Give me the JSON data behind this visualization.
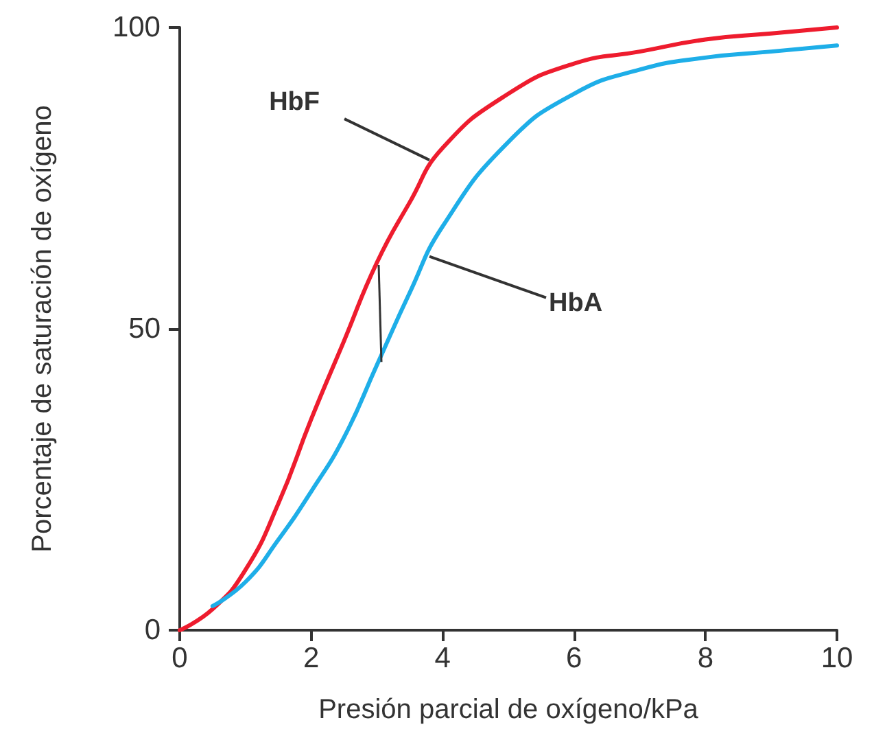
{
  "chart_data": {
    "type": "line",
    "xlabel": "Presión parcial de oxígeno/kPa",
    "ylabel": "Porcentaje de saturación de oxígeno",
    "xlim": [
      0,
      10
    ],
    "xticks": [
      0,
      2,
      4,
      6,
      8,
      10
    ],
    "ylim": [
      0,
      100
    ],
    "yticks": [
      0,
      50,
      100
    ],
    "grid": false,
    "marker": "none",
    "line_style": "solid",
    "series": [
      {
        "color": "#ee1c2e",
        "x": [
          0,
          0.5,
          1,
          1.5,
          2,
          2.5,
          3,
          3.5,
          4,
          5,
          6,
          7,
          8,
          9,
          10
        ],
        "values": [
          0,
          3.5,
          10,
          21,
          35,
          48,
          61,
          71,
          80,
          89,
          94,
          96,
          98,
          99,
          100
        ]
      },
      {
        "color": "#1eaee8",
        "x": [
          0.5,
          1,
          1.5,
          2,
          2.5,
          3,
          3.5,
          4,
          5,
          6,
          7,
          8,
          9,
          10
        ],
        "values": [
          4,
          8,
          15,
          23,
          32,
          44,
          56,
          67,
          81,
          89,
          93,
          95,
          96,
          97
        ]
      }
    ],
    "annotations": [
      {
        "text": "HbF",
        "x": 3.8,
        "y": 78
      },
      {
        "text": "HbA",
        "x": 3.8,
        "y": 62
      }
    ]
  }
}
